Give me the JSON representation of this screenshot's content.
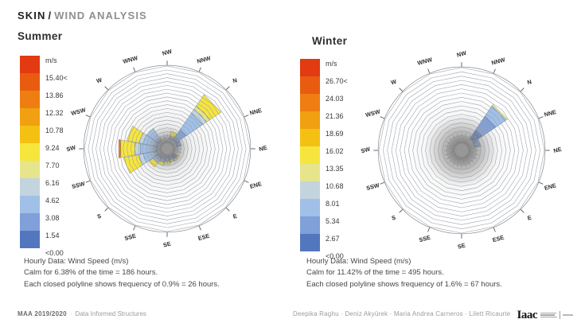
{
  "header": {
    "title_primary": "SKIN",
    "title_sep": "/",
    "title_secondary": "WIND ANALYSIS"
  },
  "chart_data": [
    {
      "type": "wind-rose",
      "title": "Summer",
      "unit": "m/s",
      "legend_labels": [
        "m/s",
        "15.40<",
        "13.86",
        "12.32",
        "10.78",
        "9.24",
        "7.70",
        "6.16",
        "4.62",
        "3.08",
        "1.54",
        "<0.00"
      ],
      "legend_colors": [
        "#e23a11",
        "#e95c10",
        "#ef7e12",
        "#f1a011",
        "#f4c113",
        "#f6e53d",
        "#e6e58c",
        "#c3d4de",
        "#a0c0e8",
        "#7fa0d8",
        "#5377be"
      ],
      "compass_clockwise_from_top": [
        "NW",
        "NNW",
        "N",
        "NNE",
        "NE",
        "ENE",
        "E",
        "ESE",
        "SE",
        "SSE",
        "S",
        "SSW",
        "SW",
        "WSW",
        "W",
        "WNW"
      ],
      "rings": 19,
      "ring_inner_fraction": 0.16,
      "calm_fraction": 0.17,
      "calm_halo": 1.7,
      "notes": [
        "Hourly Data: Wind Speed (m/s)",
        "Calm for 6.38% of the time = 186 hours.",
        "Each closed polyline shows frequency of 0.9% = 26 hours."
      ],
      "petals": [
        {
          "dir": "N",
          "segments": [
            [
              0.13,
              0.28,
              "#7fa0d8"
            ],
            [
              0.28,
              0.52,
              "#a0c0e8"
            ],
            [
              0.52,
              0.58,
              "#c3d4de"
            ],
            [
              0.58,
              0.63,
              "#e6e58c"
            ],
            [
              0.63,
              0.79,
              "#f6e53d"
            ]
          ]
        },
        {
          "dir": "NNE",
          "segments": [
            [
              0.12,
              0.18,
              "#7fa0d8"
            ]
          ]
        },
        {
          "dir": "NNW",
          "segments": [
            [
              0.12,
              0.16,
              "#a0c0e8"
            ],
            [
              0.16,
              0.22,
              "#f6e53d"
            ]
          ]
        },
        {
          "dir": "E",
          "segments": [
            [
              0.1,
              0.15,
              "#7fa0d8"
            ],
            [
              0.15,
              0.18,
              "#f6e53d"
            ]
          ]
        },
        {
          "dir": "ESE",
          "segments": [
            [
              0.1,
              0.14,
              "#a0c0e8"
            ],
            [
              0.14,
              0.17,
              "#f6e53d"
            ]
          ]
        },
        {
          "dir": "SE",
          "segments": [
            [
              0.1,
              0.15,
              "#a0c0e8"
            ],
            [
              0.15,
              0.19,
              "#f6e53d"
            ]
          ]
        },
        {
          "dir": "SSE",
          "segments": [
            [
              0.11,
              0.17,
              "#a0c0e8"
            ],
            [
              0.17,
              0.21,
              "#f6e53d"
            ]
          ]
        },
        {
          "dir": "S",
          "segments": [
            [
              0.11,
              0.2,
              "#a0c0e8"
            ],
            [
              0.2,
              0.27,
              "#f6e53d"
            ]
          ]
        },
        {
          "dir": "SSW",
          "segments": [
            [
              0.12,
              0.3,
              "#a0c0e8"
            ],
            [
              0.3,
              0.36,
              "#c3d4de"
            ],
            [
              0.36,
              0.54,
              "#f6e53d"
            ]
          ]
        },
        {
          "dir": "SW",
          "segments": [
            [
              0.12,
              0.33,
              "#a0c0e8"
            ],
            [
              0.33,
              0.4,
              "#c3d4de"
            ],
            [
              0.4,
              0.57,
              "#f6e53d"
            ],
            [
              0.57,
              0.595,
              "#ef7e12"
            ]
          ]
        },
        {
          "dir": "WSW",
          "segments": [
            [
              0.12,
              0.3,
              "#a0c0e8"
            ],
            [
              0.3,
              0.35,
              "#c3d4de"
            ],
            [
              0.35,
              0.5,
              "#f6e53d"
            ]
          ]
        },
        {
          "dir": "W",
          "segments": [
            [
              0.12,
              0.3,
              "#a0c0e8"
            ]
          ]
        }
      ]
    },
    {
      "type": "wind-rose",
      "title": "Winter",
      "unit": "m/s",
      "legend_labels": [
        "m/s",
        "26.70<",
        "24.03",
        "21.36",
        "18.69",
        "16.02",
        "13.35",
        "10.68",
        "8.01",
        "5.34",
        "2.67",
        "<0.00"
      ],
      "legend_colors": [
        "#e23a11",
        "#e95c10",
        "#ef7e12",
        "#f1a011",
        "#f4c113",
        "#f6e53d",
        "#e6e58c",
        "#c3d4de",
        "#a0c0e8",
        "#7fa0d8",
        "#5377be"
      ],
      "compass_clockwise_from_top": [
        "NW",
        "NNW",
        "N",
        "NNE",
        "NE",
        "ENE",
        "E",
        "ESE",
        "SE",
        "SSE",
        "S",
        "SSW",
        "SW",
        "WSW",
        "W",
        "WNW"
      ],
      "rings": 17,
      "ring_inner_fraction": 0.18,
      "calm_fraction": 0.2,
      "calm_halo": 2.2,
      "notes": [
        "Hourly Data: Wind Speed (m/s)",
        "Calm for 11.42% of the time = 495 hours.",
        "Each closed polyline shows frequency of 1.6% = 67 hours."
      ],
      "petals": [
        {
          "dir": "N",
          "segments": [
            [
              0.17,
              0.3,
              "#5377be"
            ],
            [
              0.3,
              0.5,
              "#7fa0d8"
            ],
            [
              0.5,
              0.65,
              "#a0c0e8"
            ],
            [
              0.65,
              0.67,
              "#e6e58c"
            ]
          ]
        },
        {
          "dir": "NNE",
          "segments": [
            [
              0.16,
              0.24,
              "#7fa0d8"
            ]
          ]
        }
      ]
    }
  ],
  "footer": {
    "course": "MAA 2019/2020",
    "separator": "·",
    "program": "Data Informed Structures",
    "authors": "Deepika Raghu · Deniz Akyürek · Maria Andrea Carneros · Lilett Ricaurte",
    "logo_text": "Iaac"
  }
}
